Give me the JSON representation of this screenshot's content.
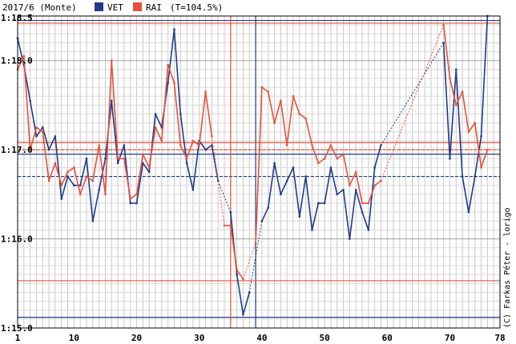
{
  "chart_data": {
    "type": "line",
    "title": "2017/6 (Monte)",
    "credit": "(C) Farkas Péter - lorigo",
    "xlim": [
      1,
      78
    ],
    "ylim": [
      15.0,
      18.5
    ],
    "y_ticks": [
      15.0,
      16.0,
      17.0,
      18.0,
      18.5
    ],
    "y_tick_labels": [
      "1:15.0",
      "1:16.0",
      "1:17.0",
      "1:18.0",
      "1:18.5"
    ],
    "x_ticks": [
      1,
      10,
      20,
      30,
      40,
      50,
      60,
      70,
      78
    ],
    "x_tick_labels": [
      "1",
      "10",
      "20",
      "30",
      "40",
      "50",
      "60",
      "70",
      "78"
    ],
    "grid": true,
    "legend_position": "top",
    "legend_note": "(T=104.5%)",
    "series": [
      {
        "name": "VET",
        "color": "#1f3a8a",
        "values": [
          18.25,
          17.95,
          17.55,
          17.15,
          17.25,
          17.0,
          17.15,
          16.45,
          16.7,
          16.6,
          16.6,
          16.9,
          16.2,
          16.55,
          16.9,
          17.55,
          16.85,
          17.05,
          16.4,
          16.4,
          16.85,
          16.75,
          17.4,
          17.25,
          17.75,
          18.35,
          17.4,
          16.85,
          16.55,
          17.1,
          17.0,
          17.05,
          16.65,
          null,
          16.3,
          15.6,
          15.15,
          15.4,
          null,
          16.2,
          16.35,
          16.85,
          16.5,
          16.65,
          16.8,
          16.25,
          16.7,
          16.1,
          16.4,
          16.4,
          16.8,
          16.5,
          16.55,
          16.0,
          16.55,
          16.3,
          16.1,
          16.8,
          17.05,
          null,
          null,
          null,
          null,
          null,
          null,
          null,
          null,
          null,
          18.2,
          16.9,
          17.9,
          16.7,
          16.3,
          16.7,
          17.15,
          18.5
        ],
        "reference_lines": [
          16.95,
          16.7,
          15.12,
          18.45
        ],
        "vertical_line_x": 39
      },
      {
        "name": "RAI",
        "color": "#e8503a",
        "values": [
          17.9,
          18.05,
          17.0,
          17.25,
          17.2,
          16.65,
          16.85,
          16.6,
          16.75,
          16.8,
          16.5,
          16.7,
          16.65,
          17.05,
          16.5,
          18.0,
          16.9,
          16.9,
          16.45,
          16.5,
          16.95,
          16.8,
          17.25,
          17.1,
          17.95,
          17.75,
          17.05,
          16.9,
          17.1,
          17.05,
          17.65,
          17.15,
          null,
          16.15,
          16.15,
          15.65,
          15.55,
          null,
          15.95,
          17.7,
          17.65,
          17.3,
          17.55,
          17.05,
          17.6,
          17.4,
          17.35,
          17.05,
          16.85,
          16.9,
          17.05,
          16.9,
          16.95,
          16.6,
          16.75,
          16.4,
          16.4,
          16.6,
          16.65,
          null,
          null,
          null,
          null,
          null,
          null,
          null,
          null,
          null,
          18.4,
          17.8,
          17.5,
          17.65,
          17.2,
          17.3,
          16.8,
          17.0
        ],
        "reference_lines": [
          17.08,
          17.0,
          15.53,
          18.42
        ],
        "vertical_line_x": 35
      }
    ]
  }
}
